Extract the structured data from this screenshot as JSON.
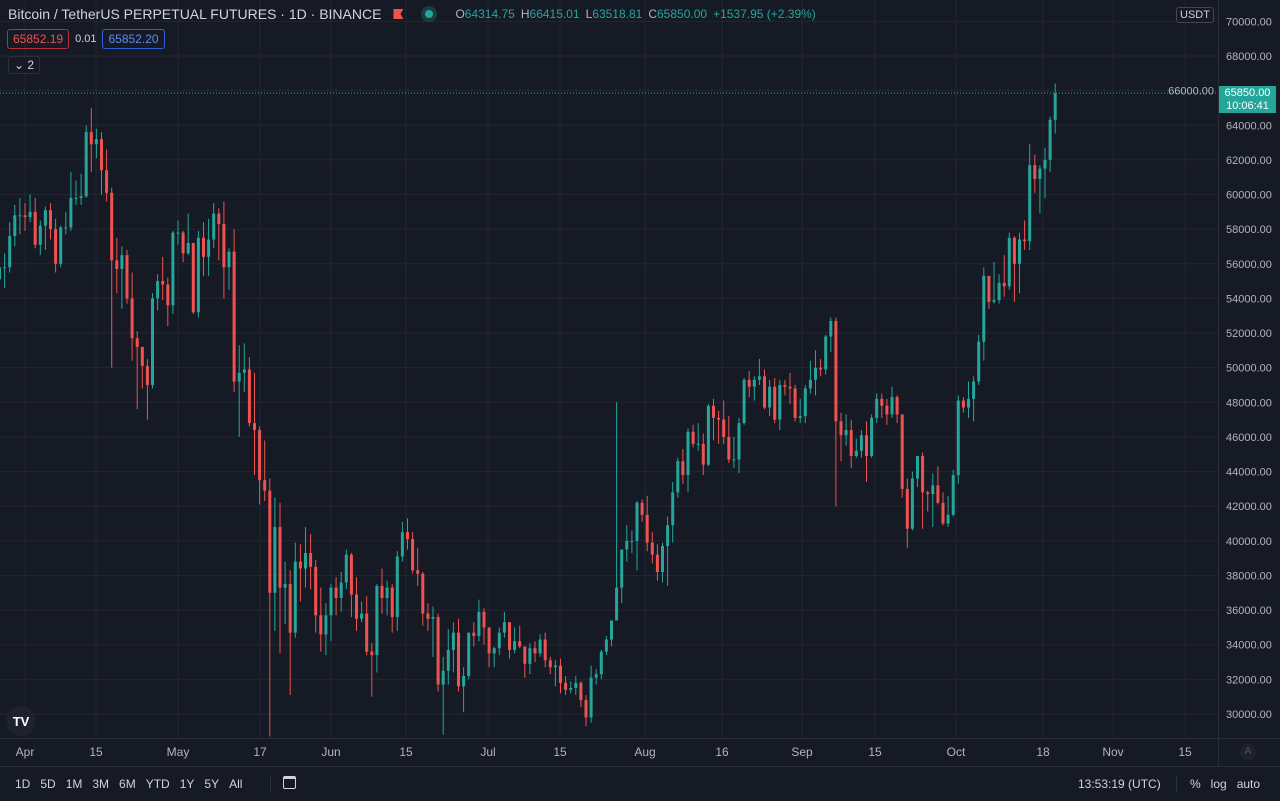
{
  "header": {
    "title": "Bitcoin / TetherUS PERPETUAL FUTURES · 1D · BINANCE",
    "ohlc": {
      "o_label": "O",
      "o": "64314.75",
      "h_label": "H",
      "h": "66415.01",
      "l_label": "L",
      "l": "63518.81",
      "c_label": "C",
      "c": "65850.00",
      "change": "+1537.95 (+2.39%)"
    },
    "bid": "65852.19",
    "spread": "0.01",
    "ask": "65852.20",
    "indicators_toggle": "⌄ 2"
  },
  "price_axis": {
    "currency": "USDT",
    "last_price": "65850.00",
    "countdown": "10:06:41"
  },
  "bottom_toolbar": {
    "ranges": [
      "1D",
      "5D",
      "1M",
      "3M",
      "6M",
      "YTD",
      "1Y",
      "5Y",
      "All"
    ],
    "clock": "13:53:19 (UTC)",
    "percent": "%",
    "log": "log",
    "auto": "auto",
    "auto_scale_button": "A",
    "logo": "TV"
  },
  "colors": {
    "up": "#26a69a",
    "down": "#ef5350",
    "background": "#161a25",
    "grid": "#232632"
  },
  "chart_data": {
    "type": "candlestick",
    "interval": "1D",
    "first_date": "Mar 27",
    "ylim": [
      29000,
      70000
    ],
    "y_ticks": [
      "70000.00",
      "68000.00",
      "66000.00",
      "64000.00",
      "62000.00",
      "60000.00",
      "58000.00",
      "56000.00",
      "54000.00",
      "52000.00",
      "50000.00",
      "48000.00",
      "46000.00",
      "44000.00",
      "42000.00",
      "40000.00",
      "38000.00",
      "36000.00",
      "34000.00",
      "32000.00",
      "30000.00"
    ],
    "x_ticks": [
      "Apr",
      "15",
      "May",
      "17",
      "Jun",
      "15",
      "Jul",
      "15",
      "Aug",
      "16",
      "Sep",
      "15",
      "Oct",
      "18",
      "Nov",
      "15"
    ],
    "grid": true,
    "first_open": 55100,
    "close": [
      55800,
      55800,
      57600,
      58800,
      58800,
      58700,
      59000,
      57100,
      58200,
      59100,
      58000,
      56000,
      58100,
      58100,
      59800,
      59800,
      59900,
      63600,
      62900,
      63200,
      61400,
      60100,
      56200,
      55700,
      56500,
      54000,
      51700,
      51200,
      50100,
      49000,
      54000,
      55000,
      54800,
      53600,
      57800,
      57800,
      56600,
      57200,
      53200,
      57500,
      56400,
      57400,
      58900,
      58300,
      55800,
      56700,
      49200,
      49700,
      49900,
      46800,
      46400,
      43500,
      42900,
      37000,
      40800,
      37300,
      37500,
      34700,
      38800,
      38400,
      39300,
      38500,
      35700,
      34600,
      35700,
      37300,
      36700,
      37600,
      39200,
      36900,
      35500,
      35800,
      33600,
      33400,
      37400,
      36700,
      37300,
      35600,
      39100,
      40500,
      40100,
      38300,
      38100,
      35800,
      35500,
      35600,
      31700,
      32500,
      33700,
      34700,
      31600,
      32200,
      34700,
      34500,
      35900,
      35000,
      33500,
      33800,
      34700,
      35300,
      33700,
      34200,
      33900,
      32900,
      33800,
      33500,
      34300,
      33100,
      32700,
      32800,
      31800,
      31400,
      31500,
      31800,
      30800,
      29800,
      32100,
      32300,
      33600,
      34300,
      35400,
      37300,
      39500,
      40000,
      40000,
      42200,
      41500,
      39900,
      39200,
      38200,
      39700,
      40900,
      42800,
      44600,
      43800,
      46300,
      45600,
      45600,
      44400,
      47800,
      47100,
      47000,
      46000,
      44700,
      44700,
      46800,
      49300,
      48900,
      49300,
      49500,
      47700,
      48900,
      47000,
      49000,
      48900,
      48800,
      47100,
      47200,
      48800,
      49300,
      50000,
      49900,
      51800,
      52700,
      46900,
      46100,
      46400,
      44900,
      45200,
      46100,
      44900,
      47100,
      48200,
      47800,
      47300,
      48300,
      47300,
      43000,
      40700,
      43600,
      44900,
      42800,
      42700,
      43200,
      42200,
      41000,
      41500,
      43800,
      48100,
      47700,
      48200,
      49200,
      51500,
      55300,
      53800,
      53900,
      54900,
      54700,
      57500,
      56000,
      57400,
      57300,
      61700,
      60900,
      61500,
      62000,
      64315,
      65850
    ],
    "high": [
      56600,
      56600,
      58400,
      59400,
      59800,
      59500,
      60000,
      59800,
      58500,
      59300,
      59500,
      58600,
      58200,
      59000,
      61300,
      60800,
      61200,
      64000,
      65000,
      63800,
      63600,
      62600,
      60400,
      57500,
      57000,
      56800,
      55500,
      52100,
      51200,
      50500,
      54300,
      55400,
      56400,
      55200,
      57900,
      58500,
      57900,
      58900,
      57200,
      57900,
      58400,
      58600,
      59500,
      59200,
      59600,
      56900,
      58000,
      51300,
      51400,
      50600,
      49700,
      46600,
      45800,
      43600,
      42500,
      42200,
      38800,
      38300,
      39900,
      39800,
      40800,
      40400,
      38900,
      37300,
      36400,
      37500,
      37900,
      38200,
      39500,
      39300,
      37900,
      36500,
      36800,
      34100,
      37500,
      38400,
      37700,
      37500,
      39400,
      41100,
      41300,
      40500,
      39600,
      38200,
      36400,
      36200,
      35800,
      33300,
      34900,
      35300,
      35500,
      32700,
      34700,
      35300,
      36600,
      36100,
      35000,
      33900,
      35000,
      35900,
      35300,
      35000,
      35100,
      33900,
      34100,
      34200,
      34600,
      34700,
      33300,
      33100,
      33200,
      32200,
      31900,
      32200,
      31900,
      31100,
      32800,
      32600,
      33700,
      34500,
      35400,
      48000,
      39500,
      40900,
      40600,
      42300,
      42400,
      42600,
      40500,
      39800,
      39900,
      41400,
      43400,
      44800,
      45300,
      46500,
      46700,
      46800,
      46200,
      47900,
      48200,
      47500,
      48100,
      47200,
      46000,
      47100,
      49400,
      49800,
      49500,
      50500,
      49900,
      49300,
      49400,
      49300,
      49300,
      49700,
      49000,
      48200,
      49000,
      50400,
      51000,
      50500,
      51900,
      52900,
      52900,
      47400,
      47300,
      47000,
      45900,
      46400,
      46900,
      47300,
      48500,
      48500,
      48200,
      48900,
      48400,
      47300,
      43600,
      44000,
      44900,
      45100,
      42900,
      43900,
      44300,
      42800,
      42600,
      44100,
      48400,
      48300,
      49200,
      49500,
      51900,
      55800,
      55300,
      56100,
      55400,
      56500,
      57800,
      57600,
      57800,
      58500,
      62900,
      62300,
      61700,
      62700,
      64500,
      66415
    ],
    "low": [
      54700,
      54600,
      55500,
      57000,
      57700,
      57900,
      58400,
      56900,
      56500,
      56800,
      57400,
      55500,
      55800,
      57700,
      57900,
      59400,
      59400,
      59800,
      61300,
      62100,
      60000,
      59600,
      50000,
      54300,
      53400,
      53700,
      50400,
      47600,
      48800,
      47000,
      48800,
      53300,
      53900,
      52400,
      53100,
      57100,
      56100,
      56500,
      53100,
      52900,
      55300,
      55300,
      56900,
      56200,
      54000,
      54500,
      48600,
      46000,
      48600,
      46600,
      43800,
      42100,
      42300,
      28700,
      34800,
      33500,
      35200,
      31100,
      34400,
      36500,
      37300,
      37200,
      34700,
      33600,
      33400,
      34200,
      35700,
      35900,
      37200,
      35600,
      34800,
      35300,
      33400,
      31000,
      32400,
      35800,
      35700,
      34700,
      34800,
      38800,
      39500,
      38100,
      37400,
      35100,
      34800,
      33300,
      31300,
      28800,
      31700,
      32400,
      31300,
      30100,
      32000,
      33900,
      34200,
      34000,
      32700,
      32700,
      33400,
      34400,
      33200,
      33500,
      33800,
      32100,
      32300,
      33000,
      33300,
      32700,
      32300,
      31600,
      31200,
      31100,
      31200,
      31100,
      30400,
      29300,
      29500,
      31700,
      32000,
      33400,
      33900,
      36500,
      36400,
      38800,
      39300,
      38300,
      41100,
      39400,
      38700,
      37700,
      37600,
      37400,
      39900,
      42500,
      43300,
      42800,
      45400,
      45200,
      43800,
      44300,
      45800,
      45600,
      45600,
      44500,
      44200,
      43900,
      46700,
      48300,
      48100,
      49000,
      47600,
      47200,
      46800,
      46400,
      48400,
      47900,
      46900,
      46800,
      46800,
      48500,
      48400,
      49500,
      49600,
      50900,
      42000,
      44600,
      45500,
      44200,
      44800,
      44800,
      43400,
      44800,
      46800,
      47100,
      46700,
      47100,
      46800,
      42500,
      39600,
      40600,
      43100,
      40700,
      41700,
      40800,
      42100,
      40900,
      40800,
      41400,
      43300,
      47400,
      47100,
      46900,
      49000,
      50400,
      53400,
      53700,
      53700,
      54100,
      54500,
      53800,
      54300,
      56800,
      56800,
      60100,
      58900,
      59800,
      61300,
      63519
    ]
  }
}
